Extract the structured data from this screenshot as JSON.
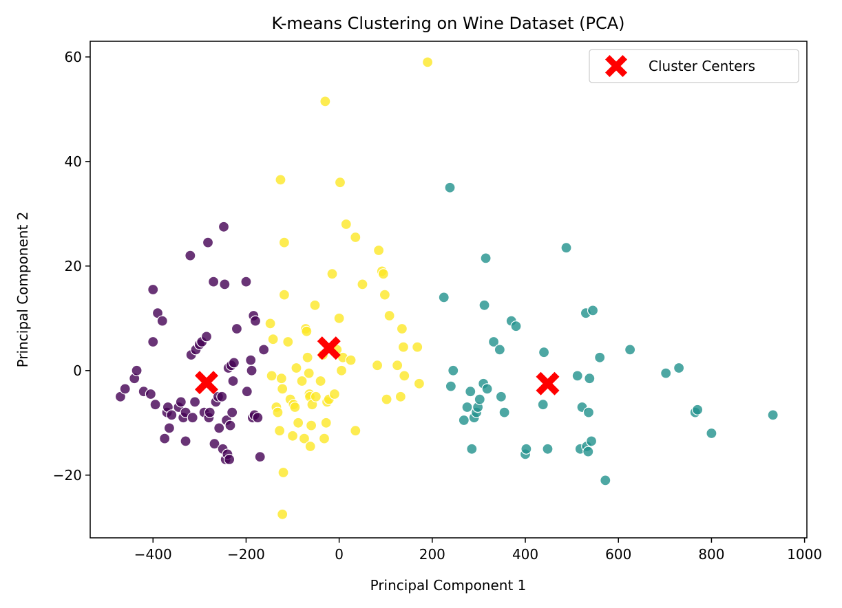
{
  "chart_data": {
    "type": "scatter",
    "title": "K-means Clustering on Wine Dataset (PCA)",
    "xlabel": "Principal Component 1",
    "ylabel": "Principal Component 2",
    "xlim": [
      -535,
      1005
    ],
    "ylim": [
      -32,
      63
    ],
    "xticks": [
      -400,
      -200,
      0,
      200,
      400,
      600,
      800,
      1000
    ],
    "yticks": [
      -20,
      0,
      20,
      40,
      60
    ],
    "xtick_labels": [
      "−400",
      "−200",
      "0",
      "200",
      "400",
      "600",
      "800",
      "1000"
    ],
    "ytick_labels": [
      "−20",
      "0",
      "20",
      "40",
      "60"
    ],
    "grid": false,
    "legend": {
      "placement": "top-right",
      "entries": [
        "Cluster Centers"
      ]
    },
    "colors": {
      "cluster_0": "#440154",
      "cluster_1": "#21918c",
      "cluster_2": "#fde725",
      "centers": "#ff0000"
    },
    "series": [
      {
        "cluster": 0,
        "color": "#440154",
        "points": [
          [
            -470,
            -5
          ],
          [
            -460,
            -3.5
          ],
          [
            -440,
            -1.5
          ],
          [
            -435,
            0
          ],
          [
            -420,
            -4
          ],
          [
            -405,
            -4.5
          ],
          [
            -400,
            15.5
          ],
          [
            -400,
            5.5
          ],
          [
            -395,
            -6.5
          ],
          [
            -390,
            11
          ],
          [
            -380,
            9.5
          ],
          [
            -375,
            -13
          ],
          [
            -370,
            -8
          ],
          [
            -368,
            -7
          ],
          [
            -365,
            -11
          ],
          [
            -360,
            -8.5
          ],
          [
            -345,
            -7
          ],
          [
            -340,
            -6
          ],
          [
            -335,
            -9
          ],
          [
            -330,
            -8
          ],
          [
            -330,
            -13.5
          ],
          [
            -320,
            22
          ],
          [
            -318,
            3
          ],
          [
            -315,
            -9
          ],
          [
            -310,
            -6
          ],
          [
            -308,
            4
          ],
          [
            -300,
            5
          ],
          [
            -295,
            5.5
          ],
          [
            -290,
            -8
          ],
          [
            -285,
            6.5
          ],
          [
            -282,
            24.5
          ],
          [
            -280,
            -9
          ],
          [
            -278,
            -8
          ],
          [
            -270,
            17
          ],
          [
            -268,
            -14
          ],
          [
            -265,
            -6
          ],
          [
            -260,
            -5
          ],
          [
            -258,
            -11
          ],
          [
            -252,
            -5
          ],
          [
            -250,
            -15
          ],
          [
            -248,
            27.5
          ],
          [
            -246,
            16.5
          ],
          [
            -244,
            -17
          ],
          [
            -242,
            -9.5
          ],
          [
            -240,
            -16
          ],
          [
            -238,
            0.5
          ],
          [
            -236,
            -17
          ],
          [
            -234,
            -10.5
          ],
          [
            -232,
            1
          ],
          [
            -230,
            -8
          ],
          [
            -228,
            -2
          ],
          [
            -226,
            1.5
          ],
          [
            -220,
            8
          ],
          [
            -200,
            17
          ],
          [
            -198,
            -4
          ],
          [
            -190,
            2
          ],
          [
            -188,
            0
          ],
          [
            -186,
            -9
          ],
          [
            -184,
            10.5
          ],
          [
            -182,
            -8.5
          ],
          [
            -180,
            9.5
          ],
          [
            -175,
            -9
          ],
          [
            -170,
            -16.5
          ],
          [
            -162,
            4
          ]
        ]
      },
      {
        "cluster": 1,
        "color": "#21918c",
        "points": [
          [
            225,
            14
          ],
          [
            238,
            35
          ],
          [
            240,
            -3
          ],
          [
            245,
            0
          ],
          [
            268,
            -9.5
          ],
          [
            275,
            -7
          ],
          [
            282,
            -4
          ],
          [
            285,
            -15
          ],
          [
            290,
            -9
          ],
          [
            295,
            -8
          ],
          [
            298,
            -7
          ],
          [
            302,
            -5.5
          ],
          [
            310,
            -2.5
          ],
          [
            312,
            12.5
          ],
          [
            315,
            21.5
          ],
          [
            318,
            -3.5
          ],
          [
            332,
            5.5
          ],
          [
            345,
            4
          ],
          [
            348,
            -5
          ],
          [
            355,
            -8
          ],
          [
            370,
            9.5
          ],
          [
            380,
            8.5
          ],
          [
            400,
            -16
          ],
          [
            402,
            -15
          ],
          [
            438,
            -6.5
          ],
          [
            440,
            3.5
          ],
          [
            448,
            -15
          ],
          [
            488,
            23.5
          ],
          [
            512,
            -1
          ],
          [
            518,
            -15
          ],
          [
            522,
            -7
          ],
          [
            530,
            11
          ],
          [
            532,
            -14.5
          ],
          [
            535,
            -15.5
          ],
          [
            536,
            -8
          ],
          [
            538,
            -1.5
          ],
          [
            542,
            -13.5
          ],
          [
            545,
            11.5
          ],
          [
            560,
            2.5
          ],
          [
            572,
            -21
          ],
          [
            625,
            4
          ],
          [
            702,
            -0.5
          ],
          [
            730,
            0.5
          ],
          [
            765,
            -8
          ],
          [
            770,
            -7.5
          ],
          [
            800,
            -12
          ],
          [
            932,
            -8.5
          ]
        ]
      },
      {
        "cluster": 2,
        "color": "#fde725",
        "points": [
          [
            -148,
            9
          ],
          [
            -145,
            -1
          ],
          [
            -142,
            6
          ],
          [
            -135,
            -7
          ],
          [
            -132,
            -8
          ],
          [
            -128,
            -11.5
          ],
          [
            -126,
            36.5
          ],
          [
            -124,
            -1.5
          ],
          [
            -122,
            -3.5
          ],
          [
            -120,
            -19.5
          ],
          [
            -122,
            -27.5
          ],
          [
            -118,
            24.5
          ],
          [
            -118,
            14.5
          ],
          [
            -110,
            5.5
          ],
          [
            -105,
            -5.5
          ],
          [
            -100,
            -12.5
          ],
          [
            -98,
            -6.5
          ],
          [
            -95,
            -7
          ],
          [
            -92,
            0.5
          ],
          [
            -88,
            -10
          ],
          [
            -80,
            -2
          ],
          [
            -75,
            -13
          ],
          [
            -72,
            8
          ],
          [
            -70,
            7.5
          ],
          [
            -68,
            2.5
          ],
          [
            -65,
            -0.5
          ],
          [
            -64,
            -4.5
          ],
          [
            -63,
            -5
          ],
          [
            -62,
            -14.5
          ],
          [
            -60,
            -10.5
          ],
          [
            -58,
            -6.5
          ],
          [
            -52,
            12.5
          ],
          [
            -50,
            -5
          ],
          [
            -40,
            -2
          ],
          [
            -35,
            3
          ],
          [
            -32,
            -13
          ],
          [
            -30,
            51.5
          ],
          [
            -28,
            -10
          ],
          [
            -26,
            -6
          ],
          [
            -22,
            -5.5
          ],
          [
            -15,
            18.5
          ],
          [
            -10,
            -4.5
          ],
          [
            -5,
            4
          ],
          [
            0,
            10
          ],
          [
            2,
            36
          ],
          [
            5,
            0
          ],
          [
            8,
            2.5
          ],
          [
            15,
            28
          ],
          [
            25,
            2
          ],
          [
            35,
            25.5
          ],
          [
            35,
            -11.5
          ],
          [
            50,
            16.5
          ],
          [
            82,
            1
          ],
          [
            85,
            23
          ],
          [
            92,
            19
          ],
          [
            95,
            18.5
          ],
          [
            98,
            14.5
          ],
          [
            102,
            -5.5
          ],
          [
            108,
            10.5
          ],
          [
            125,
            1
          ],
          [
            132,
            -5
          ],
          [
            135,
            8
          ],
          [
            138,
            4.5
          ],
          [
            140,
            -1
          ],
          [
            168,
            4.5
          ],
          [
            172,
            -2.5
          ],
          [
            190,
            59
          ]
        ]
      }
    ],
    "centers": [
      [
        -285,
        -2.3
      ],
      [
        -22,
        4.3
      ],
      [
        448,
        -2.5
      ]
    ]
  }
}
